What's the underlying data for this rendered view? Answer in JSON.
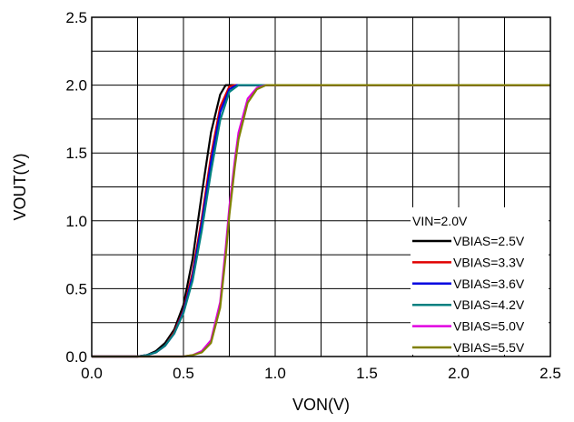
{
  "chart_data": {
    "type": "line",
    "xlabel": "VON(V)",
    "ylabel": "VOUT(V)",
    "xlim": [
      0.0,
      2.5
    ],
    "ylim": [
      0.0,
      2.5
    ],
    "x_ticks": [
      "0.0",
      "0.5",
      "1.0",
      "1.5",
      "2.0",
      "2.5"
    ],
    "y_ticks": [
      "0.0",
      "0.5",
      "1.0",
      "1.5",
      "2.0",
      "2.5"
    ],
    "grid": true,
    "grid_step_x": 0.25,
    "grid_step_y": 0.25,
    "legend_placement": "bottom-right",
    "legend_title": "VIN=2.0V",
    "series": [
      {
        "name": "VBIAS=2.5V",
        "color": "#000000",
        "x": [
          0.0,
          0.25,
          0.3,
          0.35,
          0.4,
          0.45,
          0.5,
          0.55,
          0.6,
          0.65,
          0.7,
          0.73,
          0.75,
          0.8,
          1.0,
          2.5
        ],
        "y": [
          0.0,
          0.0,
          0.01,
          0.04,
          0.1,
          0.2,
          0.38,
          0.72,
          1.2,
          1.65,
          1.93,
          2.0,
          2.0,
          2.0,
          2.0,
          2.0
        ]
      },
      {
        "name": "VBIAS=3.3V",
        "color": "#e00000",
        "x": [
          0.0,
          0.25,
          0.3,
          0.35,
          0.4,
          0.45,
          0.5,
          0.55,
          0.6,
          0.65,
          0.7,
          0.75,
          0.78,
          0.85,
          1.0,
          2.5
        ],
        "y": [
          0.0,
          0.0,
          0.01,
          0.03,
          0.08,
          0.18,
          0.34,
          0.62,
          1.02,
          1.48,
          1.84,
          1.99,
          2.0,
          2.0,
          2.0,
          2.0
        ]
      },
      {
        "name": "VBIAS=3.6V",
        "color": "#0000e0",
        "x": [
          0.0,
          0.25,
          0.3,
          0.35,
          0.4,
          0.45,
          0.5,
          0.55,
          0.6,
          0.65,
          0.7,
          0.75,
          0.79,
          0.85,
          1.0,
          2.5
        ],
        "y": [
          0.0,
          0.0,
          0.01,
          0.03,
          0.08,
          0.17,
          0.33,
          0.59,
          0.98,
          1.43,
          1.8,
          1.97,
          2.0,
          2.0,
          2.0,
          2.0
        ]
      },
      {
        "name": "VBIAS=4.2V",
        "color": "#008080",
        "x": [
          0.0,
          0.25,
          0.3,
          0.35,
          0.4,
          0.45,
          0.5,
          0.55,
          0.6,
          0.65,
          0.7,
          0.75,
          0.8,
          0.85,
          1.0,
          2.5
        ],
        "y": [
          0.0,
          0.0,
          0.01,
          0.03,
          0.08,
          0.17,
          0.32,
          0.56,
          0.93,
          1.36,
          1.74,
          1.95,
          2.0,
          2.0,
          2.0,
          2.0
        ]
      },
      {
        "name": "VBIAS=5.0V",
        "color": "#e000e0",
        "x": [
          0.0,
          0.5,
          0.55,
          0.6,
          0.65,
          0.7,
          0.73,
          0.75,
          0.78,
          0.8,
          0.85,
          0.9,
          0.95,
          1.0,
          2.5
        ],
        "y": [
          0.0,
          0.0,
          0.01,
          0.04,
          0.12,
          0.4,
          0.8,
          1.1,
          1.45,
          1.65,
          1.9,
          1.98,
          2.0,
          2.0,
          2.0
        ]
      },
      {
        "name": "VBIAS=5.5V",
        "color": "#808000",
        "x": [
          0.0,
          0.5,
          0.55,
          0.6,
          0.65,
          0.7,
          0.73,
          0.75,
          0.78,
          0.8,
          0.85,
          0.9,
          0.95,
          1.0,
          2.5
        ],
        "y": [
          0.0,
          0.0,
          0.01,
          0.03,
          0.1,
          0.36,
          0.74,
          1.04,
          1.4,
          1.6,
          1.87,
          1.97,
          2.0,
          2.0,
          2.0
        ]
      }
    ]
  }
}
